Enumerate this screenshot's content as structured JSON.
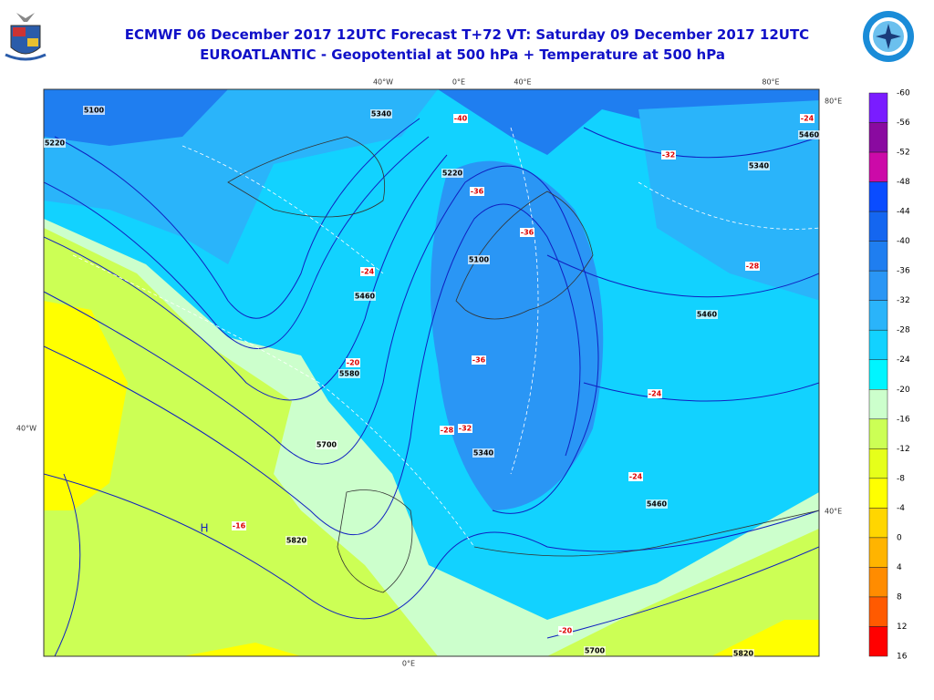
{
  "header": {
    "title": "ECMWF 06 December 2017 12UTC Forecast T+72 VT: Saturday 09 December 2017 12UTC",
    "subtitle": "EUROATLANTIC - Geopotential at 500 hPa + Temperature at 500 hPa"
  },
  "map": {
    "grid_labels": [
      "40°W",
      "0°E",
      "40°E",
      "80°E",
      "80°E",
      "40°E",
      "40°W",
      "0°E"
    ],
    "geopotential_labels": [
      "5100",
      "5220",
      "5340",
      "5220",
      "5100",
      "5460",
      "5580",
      "5700",
      "5820",
      "5340",
      "5460",
      "5340",
      "5460",
      "5820",
      "5700",
      "5460"
    ],
    "temperature_labels": [
      "-36",
      "-36",
      "-36",
      "-24",
      "-20",
      "-28",
      "-32",
      "-24",
      "-24",
      "-28",
      "-16",
      "-20",
      "-40",
      "-24",
      "-32"
    ],
    "high_label": "H"
  },
  "colorbar": {
    "labels": [
      -60,
      -56,
      -52,
      -48,
      -44,
      -40,
      -36,
      -32,
      -28,
      -24,
      -20,
      -16,
      -12,
      -8,
      -4,
      0,
      4,
      8,
      12,
      16
    ],
    "colors": [
      "#7a1cff",
      "#8a0aa0",
      "#cc0aa8",
      "#0a4cff",
      "#1466f0",
      "#1f7ef0",
      "#2a96f5",
      "#2ab4fa",
      "#12d2ff",
      "#00f5ff",
      "#ccffcc",
      "#ccff55",
      "#e6ff1a",
      "#ffff00",
      "#ffd600",
      "#ffb400",
      "#ff8c00",
      "#ff5a00",
      "#ff0000"
    ]
  }
}
